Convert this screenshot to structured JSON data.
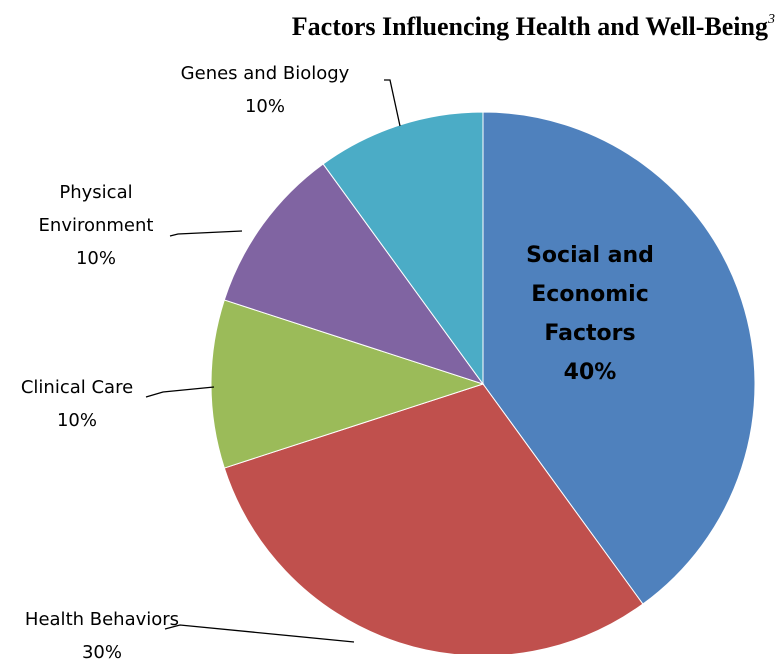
{
  "chart_data": {
    "type": "pie",
    "title": "Factors Influencing Health and Well-Being",
    "title_superscript": "3",
    "categories": [
      "Social and Economic Factors",
      "Health Behaviors",
      "Clinical Care",
      "Physical Environment",
      "Genes and Biology"
    ],
    "values": [
      40,
      30,
      10,
      10,
      10
    ],
    "value_labels": [
      "40%",
      "30%",
      "10%",
      "10%",
      "10%"
    ],
    "colors": [
      "#4f81bd",
      "#c0504d",
      "#9bbb59",
      "#8064a2",
      "#4bacc6"
    ]
  }
}
